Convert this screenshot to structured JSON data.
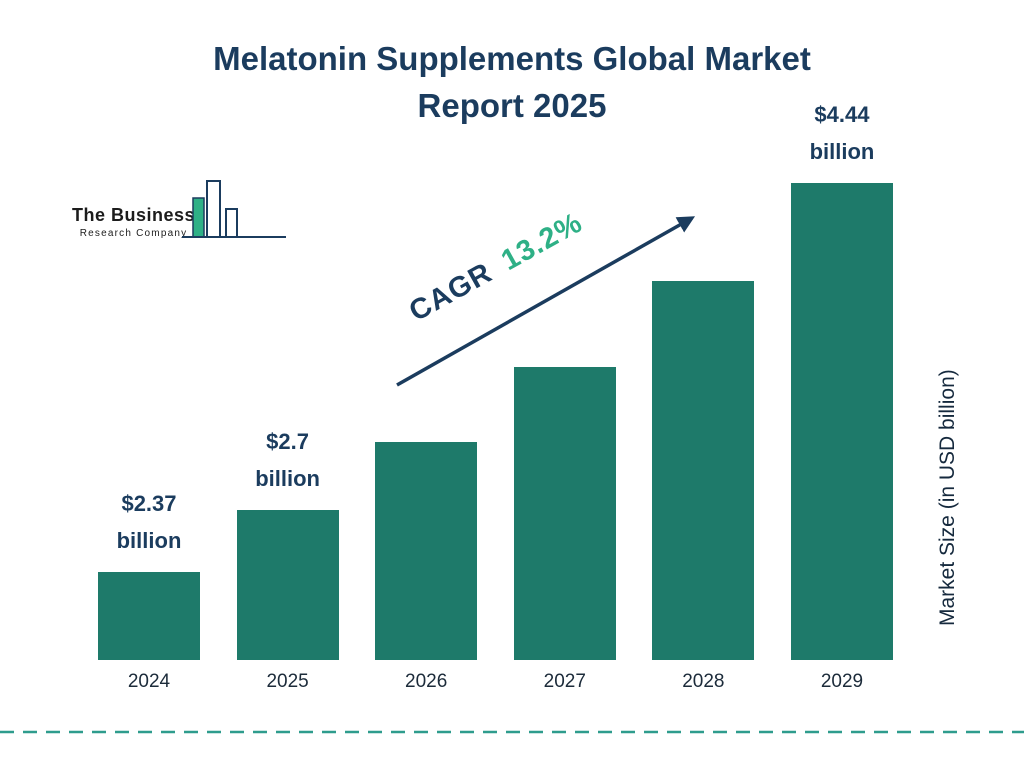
{
  "page": {
    "title_line1": "Melatonin Supplements Global Market",
    "title_line2": "Report 2025"
  },
  "logo": {
    "line1": "The Business",
    "line2": "Research Company"
  },
  "chart_data": {
    "type": "bar",
    "title": "Melatonin Supplements Global Market Report 2025",
    "xlabel": "",
    "ylabel": "Market Size (in USD billion)",
    "categories": [
      "2024",
      "2025",
      "2026",
      "2027",
      "2028",
      "2029"
    ],
    "values": [
      2.37,
      2.7,
      3.06,
      3.46,
      3.92,
      4.44
    ],
    "bar_labels": [
      "$2.37 billion",
      "$2.7 billion",
      "",
      "",
      "",
      "$4.44 billion"
    ],
    "cagr": {
      "label": "CAGR",
      "value": "13.2%"
    },
    "ylim": [
      0,
      4.44
    ],
    "visual_baseline_value": 1.9,
    "grid": false,
    "legend": "none",
    "colors": {
      "bar": "#1e7a6a",
      "accent_green": "#2eb086",
      "navy": "#1b3c5e",
      "dashed_line": "#2e9c8d"
    }
  }
}
